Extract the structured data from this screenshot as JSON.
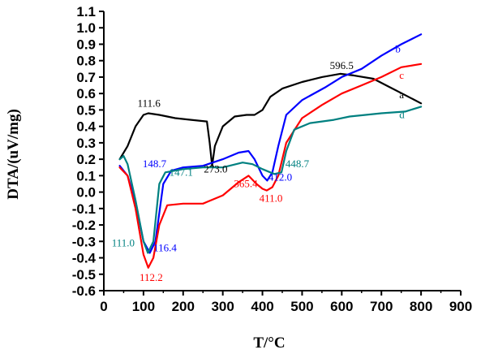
{
  "chart_data": {
    "type": "line",
    "title": "",
    "xlabel": "T/°C",
    "ylabel": "DTA/(uV/mg)",
    "xlim": [
      0,
      900
    ],
    "ylim": [
      -0.6,
      1.1
    ],
    "x_ticks": [
      0,
      100,
      200,
      300,
      400,
      500,
      600,
      700,
      800,
      900
    ],
    "y_ticks": [
      -0.6,
      -0.5,
      -0.4,
      -0.3,
      -0.2,
      -0.1,
      0.0,
      0.1,
      0.2,
      0.3,
      0.4,
      0.5,
      0.6,
      0.7,
      0.8,
      0.9,
      1.0,
      1.1
    ],
    "x_tick_labels": [
      "0",
      "100",
      "200",
      "300",
      "400",
      "500",
      "600",
      "700",
      "800",
      "900"
    ],
    "y_tick_labels": [
      "-0.6",
      "-0.5",
      "-0.4",
      "-0.3",
      "-0.2",
      "-0.1",
      "0.0",
      "0.1",
      "0.2",
      "0.3",
      "0.4",
      "0.5",
      "0.6",
      "0.7",
      "0.8",
      "0.9",
      "1.0",
      "1.1"
    ],
    "grid": false,
    "series": [
      {
        "name": "a",
        "color": "#000000",
        "points": [
          [
            40,
            0.2
          ],
          [
            60,
            0.28
          ],
          [
            80,
            0.4
          ],
          [
            100,
            0.47
          ],
          [
            112,
            0.48
          ],
          [
            140,
            0.47
          ],
          [
            180,
            0.45
          ],
          [
            220,
            0.44
          ],
          [
            260,
            0.43
          ],
          [
            267,
            0.3
          ],
          [
            273,
            0.16
          ],
          [
            280,
            0.28
          ],
          [
            300,
            0.4
          ],
          [
            330,
            0.46
          ],
          [
            360,
            0.47
          ],
          [
            380,
            0.47
          ],
          [
            400,
            0.5
          ],
          [
            420,
            0.58
          ],
          [
            450,
            0.63
          ],
          [
            500,
            0.67
          ],
          [
            550,
            0.7
          ],
          [
            596,
            0.72
          ],
          [
            630,
            0.71
          ],
          [
            680,
            0.69
          ],
          [
            720,
            0.64
          ],
          [
            760,
            0.59
          ],
          [
            800,
            0.54
          ]
        ]
      },
      {
        "name": "b",
        "color": "#0000ff",
        "points": [
          [
            40,
            0.16
          ],
          [
            60,
            0.1
          ],
          [
            80,
            -0.06
          ],
          [
            100,
            -0.3
          ],
          [
            116,
            -0.37
          ],
          [
            130,
            -0.3
          ],
          [
            150,
            0.05
          ],
          [
            170,
            0.13
          ],
          [
            200,
            0.15
          ],
          [
            250,
            0.16
          ],
          [
            300,
            0.2
          ],
          [
            340,
            0.24
          ],
          [
            365,
            0.25
          ],
          [
            380,
            0.2
          ],
          [
            400,
            0.1
          ],
          [
            412,
            0.07
          ],
          [
            425,
            0.12
          ],
          [
            440,
            0.28
          ],
          [
            460,
            0.47
          ],
          [
            500,
            0.56
          ],
          [
            560,
            0.64
          ],
          [
            600,
            0.7
          ],
          [
            650,
            0.75
          ],
          [
            700,
            0.83
          ],
          [
            750,
            0.9
          ],
          [
            800,
            0.96
          ]
        ]
      },
      {
        "name": "c",
        "color": "#ff0000",
        "points": [
          [
            40,
            0.15
          ],
          [
            60,
            0.1
          ],
          [
            80,
            -0.1
          ],
          [
            100,
            -0.38
          ],
          [
            112,
            -0.46
          ],
          [
            125,
            -0.4
          ],
          [
            140,
            -0.2
          ],
          [
            160,
            -0.08
          ],
          [
            200,
            -0.07
          ],
          [
            250,
            -0.07
          ],
          [
            300,
            -0.02
          ],
          [
            340,
            0.06
          ],
          [
            365,
            0.1
          ],
          [
            385,
            0.05
          ],
          [
            400,
            0.02
          ],
          [
            411,
            0.01
          ],
          [
            425,
            0.03
          ],
          [
            440,
            0.1
          ],
          [
            460,
            0.3
          ],
          [
            500,
            0.45
          ],
          [
            550,
            0.53
          ],
          [
            600,
            0.6
          ],
          [
            650,
            0.65
          ],
          [
            700,
            0.7
          ],
          [
            750,
            0.76
          ],
          [
            800,
            0.78
          ]
        ]
      },
      {
        "name": "d",
        "color": "#008080",
        "points": [
          [
            40,
            0.2
          ],
          [
            50,
            0.22
          ],
          [
            60,
            0.17
          ],
          [
            80,
            -0.05
          ],
          [
            100,
            -0.3
          ],
          [
            111,
            -0.37
          ],
          [
            125,
            -0.3
          ],
          [
            140,
            0.05
          ],
          [
            155,
            0.12
          ],
          [
            200,
            0.14
          ],
          [
            250,
            0.15
          ],
          [
            300,
            0.15
          ],
          [
            350,
            0.18
          ],
          [
            375,
            0.17
          ],
          [
            400,
            0.14
          ],
          [
            430,
            0.11
          ],
          [
            448,
            0.12
          ],
          [
            460,
            0.25
          ],
          [
            480,
            0.38
          ],
          [
            520,
            0.42
          ],
          [
            580,
            0.44
          ],
          [
            620,
            0.46
          ],
          [
            660,
            0.47
          ],
          [
            700,
            0.48
          ],
          [
            760,
            0.49
          ],
          [
            800,
            0.52
          ]
        ]
      }
    ],
    "annotations": [
      {
        "text": "111.6",
        "x": 85,
        "y": 0.52,
        "color": "#000000"
      },
      {
        "text": "596.5",
        "x": 570,
        "y": 0.75,
        "color": "#000000"
      },
      {
        "text": "273.0",
        "x": 252,
        "y": 0.12,
        "color": "#000000"
      },
      {
        "text": "148.7",
        "x": 98,
        "y": 0.15,
        "color": "#0000ff"
      },
      {
        "text": "147.1",
        "x": 165,
        "y": 0.1,
        "color": "#008080"
      },
      {
        "text": "365.4",
        "x": 328,
        "y": 0.03,
        "color": "#ff0000"
      },
      {
        "text": "412.0",
        "x": 415,
        "y": 0.07,
        "color": "#0000ff"
      },
      {
        "text": "411.0",
        "x": 392,
        "y": -0.06,
        "color": "#ff0000"
      },
      {
        "text": "448.7",
        "x": 458,
        "y": 0.15,
        "color": "#008080"
      },
      {
        "text": "111.0",
        "x": 20,
        "y": -0.33,
        "color": "#008080"
      },
      {
        "text": "116.4",
        "x": 125,
        "y": -0.36,
        "color": "#0000ff"
      },
      {
        "text": "112.2",
        "x": 90,
        "y": -0.54,
        "color": "#ff0000"
      },
      {
        "text": "b",
        "x": 735,
        "y": 0.85,
        "color": "#0000ff"
      },
      {
        "text": "c",
        "x": 745,
        "y": 0.69,
        "color": "#ff0000"
      },
      {
        "text": "a",
        "x": 745,
        "y": 0.57,
        "color": "#000000"
      },
      {
        "text": "d",
        "x": 745,
        "y": 0.45,
        "color": "#008080"
      }
    ]
  }
}
